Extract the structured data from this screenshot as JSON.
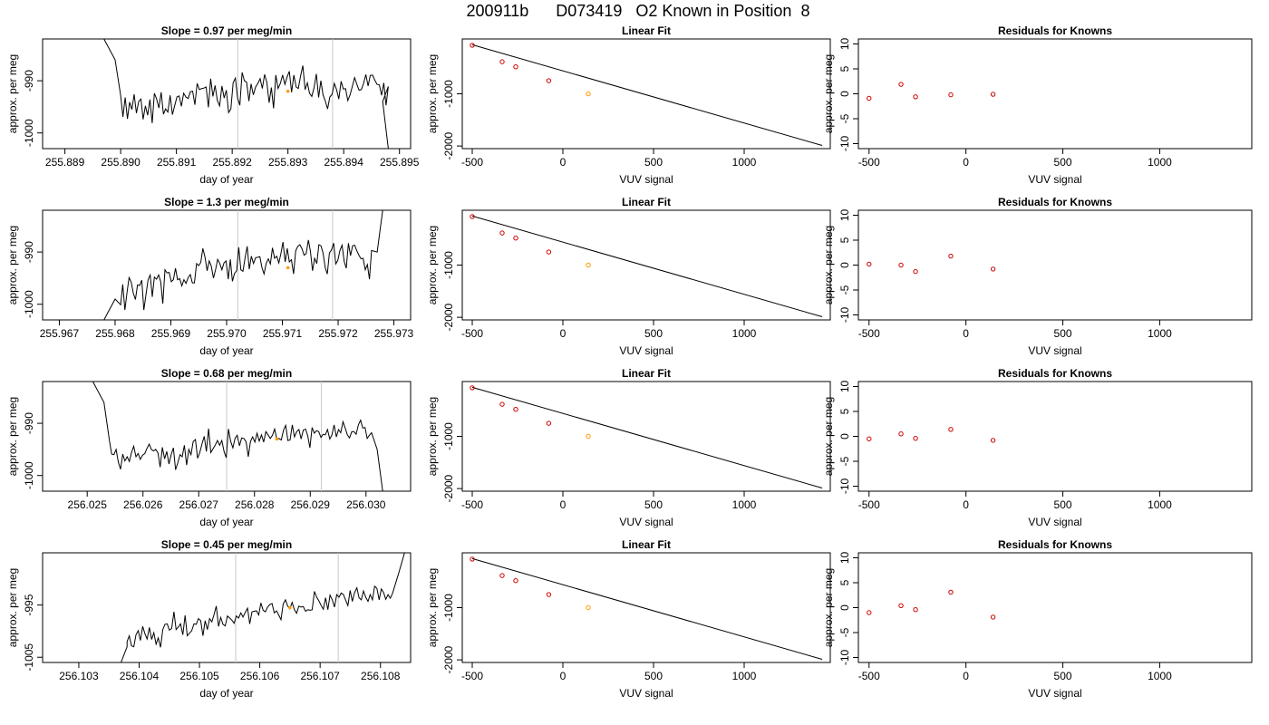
{
  "figure": {
    "title": "200911b      D073419   O2 Known in Position  8"
  },
  "colors": {
    "line": "#000000",
    "marker_red": "#cc0000",
    "marker_orange": "#ff9900",
    "vline": "#c8c8c8"
  },
  "chart_data": [
    {
      "type": "line",
      "panel": "time",
      "row": 0,
      "title": "Slope =  0.97  per meg/min",
      "xlabel": "day of year",
      "ylabel": "approx. per meg",
      "xlim": [
        255.8886,
        255.8952
      ],
      "ylim": [
        -1003,
        -982
      ],
      "xticks": [
        "255.889",
        "255.890",
        "255.891",
        "255.892",
        "255.893",
        "255.894",
        "255.895"
      ],
      "yticks": [
        -1000,
        -990
      ],
      "vlines": [
        255.8921,
        255.8938
      ],
      "point": [
        255.893,
        -992.0
      ],
      "start_x": 255.89,
      "end_x": 255.8948,
      "start_drop": [
        [
          255.8897,
          -982
        ],
        [
          255.8899,
          -986
        ]
      ],
      "end_drop": [
        [
          255.8947,
          -994
        ],
        [
          255.8948,
          -1003
        ]
      ],
      "values": [
        -992.8,
        -996.9,
        -993.2,
        -997.3,
        -994.1,
        -995.5,
        -992.6,
        -996.2,
        -994.0,
        -993.5,
        -997.4,
        -994.8,
        -996.6,
        -993.6,
        -998.1,
        -992.4,
        -993.5,
        -995.2,
        -992.2,
        -996.4,
        -995.4,
        -996.0,
        -992.8,
        -996.5,
        -994.8,
        -993.1,
        -992.9,
        -994.9,
        -992.4,
        -993.1,
        -993.4,
        -992.1,
        -992.0,
        -994.6,
        -990.5,
        -991.7,
        -991.5,
        -991.4,
        -991.2,
        -995.1,
        -989.6,
        -993.0,
        -990.9,
        -993.8,
        -994.8,
        -991.0,
        -993.3,
        -991.8,
        -996.1,
        -995.4,
        -990.4,
        -989.5,
        -993.3,
        -994.7,
        -988.4,
        -990.0,
        -990.3,
        -993.9,
        -990.6,
        -992.7,
        -991.2,
        -990.5,
        -989.6,
        -991.5,
        -988.8,
        -990.3,
        -994.2,
        -991.3,
        -995.3,
        -988.9,
        -991.5,
        -990.5,
        -988.9,
        -990.7,
        -989.3,
        -988.2,
        -992.2,
        -988.9,
        -991.2,
        -991.5,
        -989.1,
        -987.1,
        -991.7,
        -990.4,
        -992.4,
        -993.0,
        -991.3,
        -988.7,
        -993.2,
        -990.0,
        -992.7,
        -993.9,
        -995.4,
        -993.1,
        -992.6,
        -990.5,
        -991.7,
        -993.5,
        -990.1,
        -991.6,
        -991.5,
        -993.8,
        -992.7,
        -991.1,
        -989.4,
        -990.7,
        -991.8,
        -991.7,
        -990.5,
        -988.8,
        -991.0,
        -989.0,
        -988.9,
        -989.9,
        -990.7,
        -990.8,
        -992.8,
        -990.4,
        -994.7,
        -991.1
      ]
    },
    {
      "type": "scatter",
      "panel": "fit",
      "row": 0,
      "title": "Linear Fit",
      "xlabel": "VUV signal",
      "ylabel": "approx. per meg",
      "xlim": [
        -555,
        1475
      ],
      "ylim": [
        -2050,
        50
      ],
      "xticks": [
        -500,
        0,
        500,
        1000
      ],
      "yticks": [
        -1000,
        -2000
      ],
      "x": [
        -500,
        -335,
        -260,
        -78,
        140
      ],
      "y": [
        -70,
        -386,
        -483,
        -750,
        -1000
      ],
      "fit_line": {
        "x": [
          -500,
          1430
        ],
        "y": [
          -60,
          -1990
        ]
      }
    },
    {
      "type": "scatter",
      "panel": "resid",
      "row": 0,
      "title": "Residuals for Knowns",
      "xlabel": "VUV signal",
      "ylabel": "approx. per meg",
      "xlim": [
        -555,
        1475
      ],
      "ylim": [
        -11,
        11
      ],
      "xticks": [
        -500,
        0,
        500,
        1000
      ],
      "yticks": [
        -10,
        -5,
        0,
        5,
        10
      ],
      "x": [
        -500,
        -335,
        -260,
        -78,
        140
      ],
      "y": [
        -0.9,
        1.9,
        -0.6,
        -0.2,
        -0.1
      ]
    },
    {
      "type": "line",
      "panel": "time",
      "row": 1,
      "title": "Slope =  1.3  per meg/min",
      "xlabel": "day of year",
      "ylabel": "approx. per meg",
      "xlim": [
        255.9667,
        255.9733
      ],
      "ylim": [
        -1003,
        -982
      ],
      "xticks": [
        "255.967",
        "255.968",
        "255.969",
        "255.970",
        "255.971",
        "255.972",
        "255.973"
      ],
      "yticks": [
        -1000,
        -990
      ],
      "vlines": [
        255.9702,
        255.9719
      ],
      "point": [
        255.9711,
        -993.0
      ],
      "start_x": 255.9681,
      "end_x": 255.9726,
      "start_drop": [
        [
          255.9678,
          -1003
        ],
        [
          255.968,
          -999
        ]
      ],
      "end_drop": [
        [
          255.9727,
          -990
        ],
        [
          255.9728,
          -982
        ]
      ],
      "values": [
        -1000.1,
        -996.2,
        -1001.1,
        -997.8,
        -994.9,
        -995.8,
        -997.9,
        -999.1,
        -996.3,
        -996.4,
        -995.4,
        -1001.1,
        -998.2,
        -995.3,
        -994.4,
        -998.6,
        -994.8,
        -995.2,
        -994.4,
        -995.7,
        -999.9,
        -993.4,
        -994.0,
        -993.9,
        -995.7,
        -995.3,
        -993.1,
        -995.3,
        -995.1,
        -996.5,
        -995.3,
        -996.0,
        -994.9,
        -994.3,
        -995.9,
        -995.9,
        -992.2,
        -992.6,
        -992.0,
        -989.3,
        -991.0,
        -993.6,
        -991.7,
        -992.7,
        -995.0,
        -993.4,
        -991.4,
        -992.2,
        -993.4,
        -992.1,
        -991.7,
        -995.2,
        -991.4,
        -995.6,
        -994.1,
        -993.6,
        -989.1,
        -993.4,
        -993.7,
        -991.1,
        -988.9,
        -993.3,
        -990.8,
        -992.2,
        -991.1,
        -991.0,
        -990.9,
        -993.0,
        -994.2,
        -992.2,
        -991.3,
        -992.3,
        -989.2,
        -991.2,
        -990.8,
        -992.1,
        -990.3,
        -988.1,
        -991.9,
        -989.3,
        -991.9,
        -991.5,
        -994.2,
        -989.8,
        -988.9,
        -988.6,
        -989.4,
        -990.6,
        -990.3,
        -987.7,
        -989.9,
        -993.6,
        -991.2,
        -992.2,
        -988.6,
        -988.8,
        -990.2,
        -993.0,
        -994.2,
        -990.2,
        -989.6,
        -988.3,
        -992.3,
        -991.6,
        -989.7,
        -988.7,
        -991.8,
        -993.1,
        -988.3,
        -990.7,
        -988.8,
        -988.7,
        -989.8,
        -990.6,
        -991.3,
        -991.2,
        -993.4,
        -992.4,
        -995.2,
        -989.7
      ]
    },
    {
      "type": "scatter",
      "panel": "fit",
      "row": 1,
      "title": "Linear Fit",
      "xlabel": "VUV signal",
      "ylabel": "approx. per meg",
      "xlim": [
        -555,
        1475
      ],
      "ylim": [
        -2050,
        50
      ],
      "xticks": [
        -500,
        0,
        500,
        1000
      ],
      "yticks": [
        -1000,
        -2000
      ],
      "x": [
        -500,
        -335,
        -260,
        -78,
        140
      ],
      "y": [
        -70,
        -386,
        -483,
        -750,
        -1000
      ],
      "fit_line": {
        "x": [
          -500,
          1430
        ],
        "y": [
          -60,
          -1990
        ]
      }
    },
    {
      "type": "scatter",
      "panel": "resid",
      "row": 1,
      "title": "Residuals for Knowns",
      "xlabel": "VUV signal",
      "ylabel": "approx. per meg",
      "xlim": [
        -555,
        1475
      ],
      "ylim": [
        -11,
        11
      ],
      "xticks": [
        -500,
        0,
        500,
        1000
      ],
      "yticks": [
        -10,
        -5,
        0,
        5,
        10
      ],
      "x": [
        -500,
        -335,
        -260,
        -78,
        140
      ],
      "y": [
        0.2,
        0.0,
        -1.3,
        1.8,
        -0.8
      ]
    },
    {
      "type": "line",
      "panel": "time",
      "row": 2,
      "title": "Slope =  0.68  per meg/min",
      "xlabel": "day of year",
      "ylabel": "approx. per meg",
      "xlim": [
        256.0242,
        256.0308
      ],
      "ylim": [
        -1003,
        -982
      ],
      "xticks": [
        "256.025",
        "256.026",
        "256.027",
        "256.028",
        "256.029",
        "256.030"
      ],
      "yticks": [
        -1000,
        -990
      ],
      "vlines": [
        256.0275,
        256.0292
      ],
      "point": [
        256.0284,
        -993.0
      ],
      "start_x": 256.0254,
      "end_x": 256.0301,
      "start_drop": [
        [
          256.0251,
          -982
        ],
        [
          256.0253,
          -986
        ]
      ],
      "end_drop": [
        [
          256.0302,
          -995
        ],
        [
          256.0303,
          -1003
        ]
      ],
      "values": [
        -993.4,
        -995.9,
        -996.0,
        -995.0,
        -997.4,
        -998.8,
        -995.9,
        -997.2,
        -996.4,
        -997.3,
        -995.6,
        -994.4,
        -996.4,
        -995.8,
        -996.9,
        -996.1,
        -995.8,
        -994.8,
        -994.0,
        -995.0,
        -995.3,
        -995.0,
        -995.7,
        -998.4,
        -994.6,
        -996.8,
        -995.4,
        -997.8,
        -996.0,
        -994.7,
        -998.9,
        -997.6,
        -996.0,
        -996.4,
        -994.2,
        -998.0,
        -995.0,
        -996.0,
        -993.5,
        -993.1,
        -996.7,
        -995.6,
        -993.9,
        -992.5,
        -995.4,
        -991.0,
        -995.6,
        -994.9,
        -994.2,
        -993.3,
        -994.2,
        -993.3,
        -995.4,
        -996.6,
        -991.1,
        -993.4,
        -994.7,
        -992.9,
        -992.3,
        -994.3,
        -992.8,
        -992.9,
        -993.5,
        -996.4,
        -993.5,
        -992.6,
        -993.6,
        -991.9,
        -993.4,
        -992.2,
        -993.6,
        -991.6,
        -992.2,
        -992.9,
        -992.3,
        -991.1,
        -993.1,
        -992.9,
        -993.2,
        -991.3,
        -990.4,
        -993.3,
        -993.2,
        -990.3,
        -992.6,
        -991.6,
        -991.2,
        -993.0,
        -991.3,
        -991.1,
        -992.4,
        -994.7,
        -990.8,
        -991.9,
        -991.4,
        -991.6,
        -992.7,
        -992.1,
        -992.2,
        -991.2,
        -993.0,
        -992.2,
        -990.3,
        -992.6,
        -991.2,
        -991.8,
        -989.7,
        -990.9,
        -992.2,
        -992.8,
        -991.6,
        -991.6,
        -992.1,
        -990.3,
        -989.4,
        -990.9,
        -990.8,
        -992.9,
        -992.3,
        -991.8
      ]
    },
    {
      "type": "scatter",
      "panel": "fit",
      "row": 2,
      "title": "Linear Fit",
      "xlabel": "VUV signal",
      "ylabel": "approx. per meg",
      "xlim": [
        -555,
        1475
      ],
      "ylim": [
        -2050,
        50
      ],
      "xticks": [
        -500,
        0,
        500,
        1000
      ],
      "yticks": [
        -1000,
        -2000
      ],
      "x": [
        -500,
        -335,
        -260,
        -78,
        140
      ],
      "y": [
        -70,
        -386,
        -483,
        -750,
        -1000
      ],
      "fit_line": {
        "x": [
          -500,
          1430
        ],
        "y": [
          -60,
          -1990
        ]
      }
    },
    {
      "type": "scatter",
      "panel": "resid",
      "row": 2,
      "title": "Residuals for Knowns",
      "xlabel": "VUV signal",
      "ylabel": "approx. per meg",
      "xlim": [
        -555,
        1475
      ],
      "ylim": [
        -11,
        11
      ],
      "xticks": [
        -500,
        0,
        500,
        1000
      ],
      "yticks": [
        -10,
        -5,
        0,
        5,
        10
      ],
      "x": [
        -500,
        -335,
        -260,
        -78,
        140
      ],
      "y": [
        -0.5,
        0.5,
        -0.4,
        1.4,
        -0.8
      ]
    },
    {
      "type": "line",
      "panel": "time",
      "row": 3,
      "title": "Slope =  0.45  per meg/min",
      "xlabel": "day of year",
      "ylabel": "approx. per meg",
      "xlim": [
        256.1024,
        256.1085
      ],
      "ylim": [
        -1006,
        -985
      ],
      "xticks": [
        "256.103",
        "256.104",
        "256.105",
        "256.106",
        "256.107",
        "256.108"
      ],
      "yticks": [
        -1005,
        -995
      ],
      "vlines": [
        256.1056,
        256.1073
      ],
      "point": [
        256.1065,
        -995.5
      ],
      "start_x": 256.1038,
      "end_x": 256.1082,
      "start_drop": [
        [
          256.1037,
          -1006
        ],
        [
          256.1038,
          -1003
        ]
      ],
      "end_drop": [
        [
          256.1083,
          -989
        ],
        [
          256.1084,
          -985
        ]
      ],
      "values": [
        -1002.0,
        -1000.9,
        -1002.8,
        -1003.0,
        -1000.7,
        -999.9,
        -1001.8,
        -999.1,
        -1000.5,
        -1001.5,
        -999.3,
        -1001.6,
        -1000.3,
        -1002.5,
        -1001.3,
        -1003.1,
        -999.7,
        -998.7,
        -998.6,
        -999.8,
        -999.5,
        -996.3,
        -999.7,
        -999.2,
        -998.6,
        -1000.7,
        -997.0,
        -1000.9,
        -1000.4,
        -999.9,
        -998.6,
        -998.7,
        -997.6,
        -998.0,
        -1000.9,
        -998.0,
        -999.7,
        -997.6,
        -998.2,
        -996.8,
        -995.2,
        -999.1,
        -997.4,
        -998.7,
        -999.0,
        -997.1,
        -997.5,
        -997.9,
        -998.5,
        -997.1,
        -997.5,
        -996.5,
        -997.3,
        -996.4,
        -995.6,
        -998.6,
        -996.3,
        -996.2,
        -996.1,
        -996.9,
        -994.6,
        -996.0,
        -996.3,
        -995.4,
        -994.9,
        -994.7,
        -996.5,
        -996.1,
        -996.9,
        -997.8,
        -994.8,
        -994.0,
        -995.2,
        -995.7,
        -994.5,
        -995.9,
        -996.6,
        -995.2,
        -995.4,
        -995.3,
        -996.2,
        -995.9,
        -996.0,
        -995.9,
        -992.4,
        -993.5,
        -994.2,
        -995.1,
        -995.8,
        -993.6,
        -995.9,
        -993.1,
        -994.0,
        -995.4,
        -993.0,
        -993.5,
        -992.7,
        -993.0,
        -994.1,
        -995.1,
        -992.2,
        -994.3,
        -992.6,
        -991.7,
        -993.6,
        -994.0,
        -992.3,
        -993.5,
        -994.3,
        -993.0,
        -994.0,
        -991.4,
        -991.8,
        -994.0,
        -991.9,
        -992.6,
        -993.9,
        -993.0,
        -993.7,
        -992.8
      ]
    },
    {
      "type": "scatter",
      "panel": "fit",
      "row": 3,
      "title": "Linear Fit",
      "xlabel": "VUV signal",
      "ylabel": "approx. per meg",
      "xlim": [
        -555,
        1475
      ],
      "ylim": [
        -2050,
        50
      ],
      "xticks": [
        -500,
        0,
        500,
        1000
      ],
      "yticks": [
        -1000,
        -2000
      ],
      "x": [
        -500,
        -335,
        -260,
        -78,
        140
      ],
      "y": [
        -70,
        -386,
        -483,
        -750,
        -1000
      ],
      "fit_line": {
        "x": [
          -500,
          1430
        ],
        "y": [
          -60,
          -1990
        ]
      }
    },
    {
      "type": "scatter",
      "panel": "resid",
      "row": 3,
      "title": "Residuals for Knowns",
      "xlabel": "VUV signal",
      "ylabel": "approx. per meg",
      "xlim": [
        -555,
        1475
      ],
      "ylim": [
        -11,
        11
      ],
      "xticks": [
        -500,
        0,
        500,
        1000
      ],
      "yticks": [
        -10,
        -5,
        0,
        5,
        10
      ],
      "x": [
        -500,
        -335,
        -260,
        -78,
        140
      ],
      "y": [
        -1.0,
        0.4,
        -0.4,
        3.1,
        -1.9
      ]
    }
  ]
}
